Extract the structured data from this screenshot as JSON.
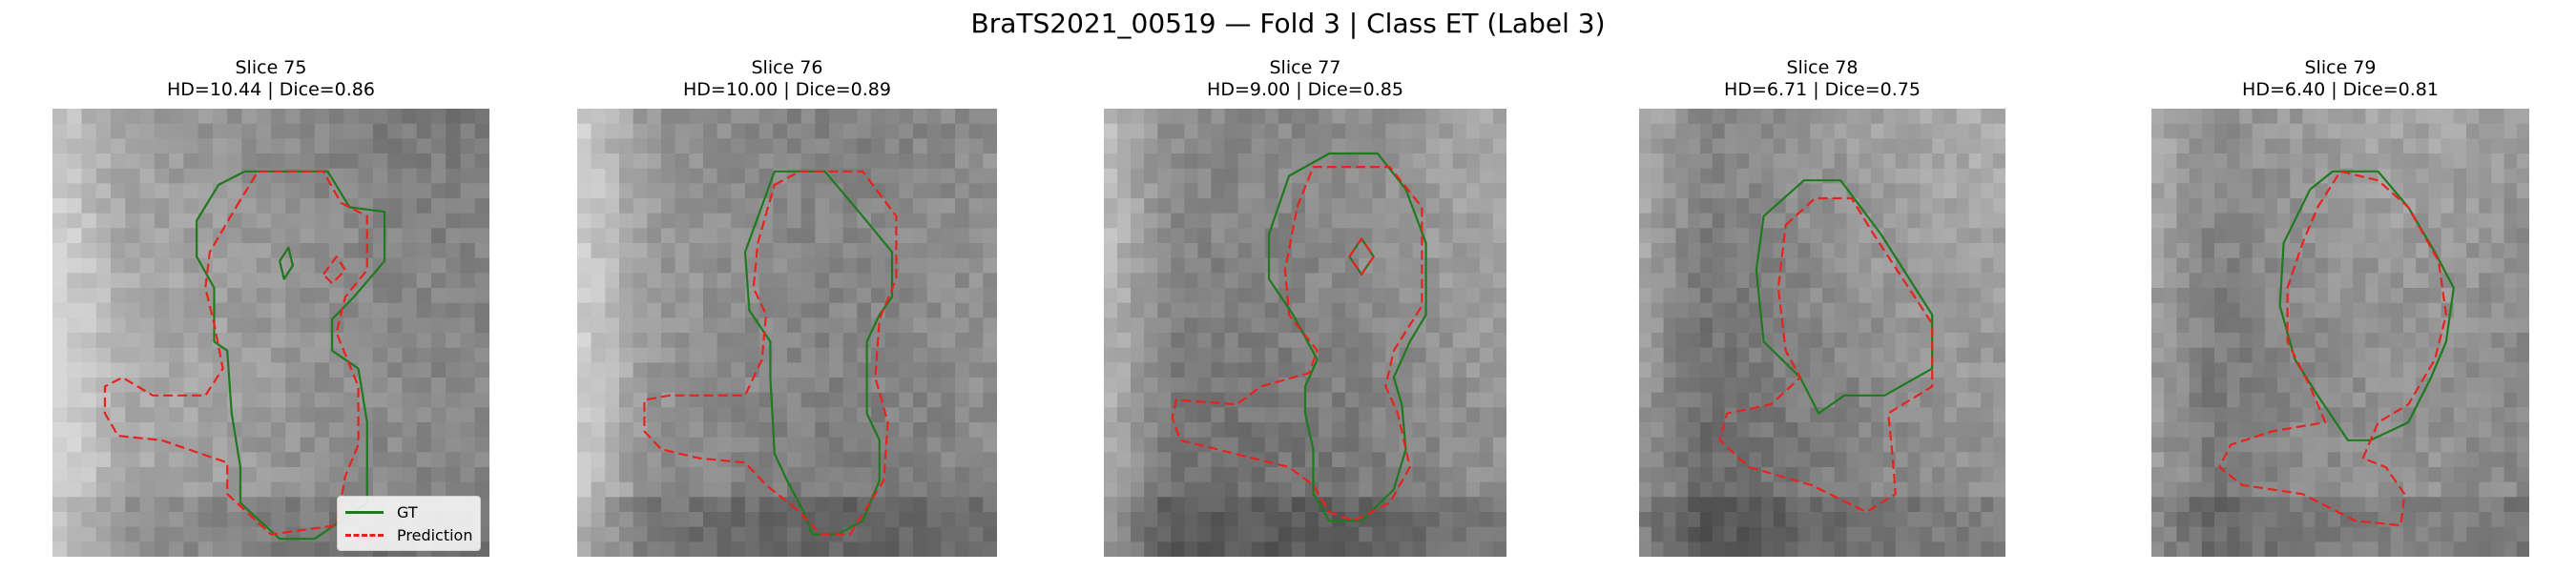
{
  "figure_title": "BraTS2021_00519 — Fold 3 | Class ET (Label 3)",
  "colors": {
    "gt": "#1f7a1f",
    "prediction": "#e8231e"
  },
  "legend": {
    "gt_label": "GT",
    "prediction_label": "Prediction"
  },
  "panels": [
    {
      "slice_label": "Slice 75",
      "metrics_label": "HD=10.44 | Dice=0.86",
      "hd": 10.44,
      "dice": 0.86
    },
    {
      "slice_label": "Slice 76",
      "metrics_label": "HD=10.00 | Dice=0.89",
      "hd": 10.0,
      "dice": 0.89
    },
    {
      "slice_label": "Slice 77",
      "metrics_label": "HD=9.00 | Dice=0.85",
      "hd": 9.0,
      "dice": 0.85
    },
    {
      "slice_label": "Slice 78",
      "metrics_label": "HD=6.71 | Dice=0.75",
      "hd": 6.71,
      "dice": 0.75
    },
    {
      "slice_label": "Slice 79",
      "metrics_label": "HD=6.40 | Dice=0.81",
      "hd": 6.4,
      "dice": 0.81
    }
  ]
}
